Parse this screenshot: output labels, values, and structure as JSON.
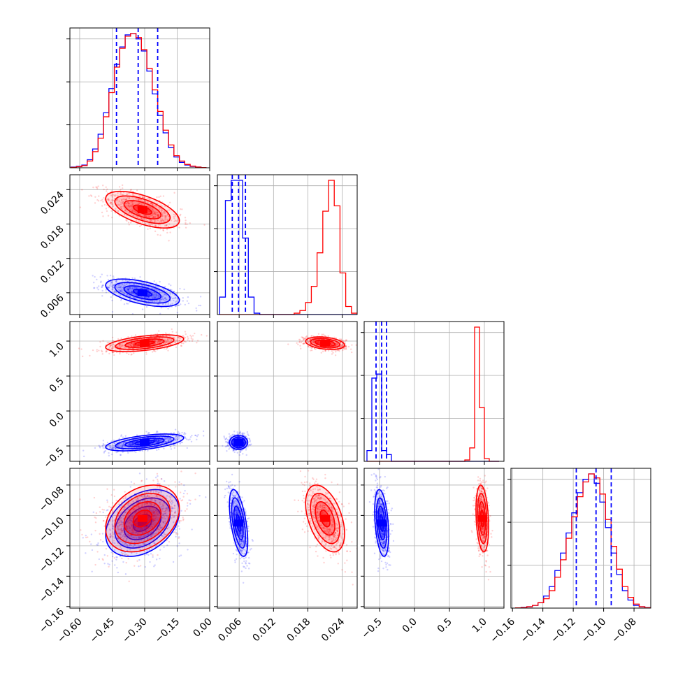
{
  "chart_data": {
    "type": "corner",
    "parameters": 4,
    "series": [
      {
        "name": "",
        "color": "#0000ff"
      },
      {
        "name": "",
        "color": "#ff0000"
      }
    ],
    "grid": true,
    "blue_quantile_lines": {
      "p0": [
        -0.43,
        -0.33,
        -0.24
      ],
      "p1": [
        0.0048,
        0.0059,
        0.0071
      ],
      "p2": [
        -0.55,
        -0.47,
        -0.4
      ],
      "p3": [
        -0.118,
        -0.105,
        -0.095
      ]
    },
    "axis_ticks": {
      "p0": [
        "−0.60",
        "−0.45",
        "−0.30",
        "−0.15",
        "0.00"
      ],
      "p1": [
        "0.006",
        "0.012",
        "0.018",
        "0.024"
      ],
      "p2": [
        "−0.5",
        "0.0",
        "0.5",
        "1.0"
      ],
      "p3": [
        "−0.16",
        "−0.14",
        "−0.12",
        "−0.10",
        "−0.08"
      ]
    },
    "ranges": {
      "p0": [
        -0.645,
        0.0
      ],
      "p1": [
        0.0022,
        0.0266
      ],
      "p2": [
        -0.72,
        1.28
      ],
      "p3": [
        -0.161,
        -0.069
      ]
    },
    "hist_p0": {
      "edges": [
        -0.64,
        -0.615,
        -0.59,
        -0.565,
        -0.54,
        -0.515,
        -0.49,
        -0.465,
        -0.44,
        -0.415,
        -0.39,
        -0.365,
        -0.34,
        -0.315,
        -0.29,
        -0.265,
        -0.24,
        -0.215,
        -0.19,
        -0.165,
        -0.14,
        -0.115,
        -0.09,
        -0.065,
        -0.04,
        -0.015
      ],
      "blue": [
        0.005,
        0.01,
        0.02,
        0.06,
        0.14,
        0.25,
        0.41,
        0.59,
        0.77,
        0.9,
        0.99,
        1.0,
        0.96,
        0.87,
        0.72,
        0.55,
        0.39,
        0.26,
        0.15,
        0.08,
        0.04,
        0.02,
        0.01,
        0.005,
        0.002
      ],
      "red": [
        0.003,
        0.008,
        0.016,
        0.05,
        0.12,
        0.22,
        0.38,
        0.56,
        0.75,
        0.89,
        0.98,
        1.0,
        0.97,
        0.88,
        0.74,
        0.58,
        0.42,
        0.28,
        0.17,
        0.09,
        0.05,
        0.025,
        0.012,
        0.005,
        0.002
      ]
    },
    "hist_p1": {
      "edges": [
        0.0026,
        0.0036,
        0.0046,
        0.0056,
        0.0066,
        0.0076,
        0.0086,
        0.0096,
        0.0106,
        0.0116,
        0.0126,
        0.0136,
        0.0146,
        0.0156,
        0.0166,
        0.0176,
        0.0186,
        0.0196,
        0.0206,
        0.0216,
        0.0226,
        0.0236,
        0.0246,
        0.0256,
        0.0266
      ],
      "blue": [
        0.13,
        0.85,
        1.0,
        1.0,
        0.57,
        0.13,
        0.01,
        0,
        0,
        0,
        0,
        0,
        0,
        0,
        0,
        0,
        0,
        0,
        0,
        0,
        0,
        0,
        0,
        0
      ],
      "red": [
        0,
        0,
        0,
        0,
        0,
        0,
        0,
        0,
        0,
        0,
        0,
        0,
        0,
        0.01,
        0.03,
        0.09,
        0.21,
        0.46,
        0.77,
        1.0,
        0.81,
        0.31,
        0.06,
        0.01
      ]
    },
    "hist_p2": {
      "edges": [
        -0.68,
        -0.61,
        -0.54,
        -0.47,
        -0.4,
        -0.33,
        -0.26,
        -0.19,
        -0.12,
        -0.05,
        0.02,
        0.09,
        0.16,
        0.23,
        0.3,
        0.37,
        0.44,
        0.51,
        0.58,
        0.65,
        0.72,
        0.79,
        0.86,
        0.93,
        1.0,
        1.07,
        1.14,
        1.21
      ],
      "blue": [
        0.08,
        0.62,
        0.65,
        0.08,
        0.05,
        0,
        0,
        0,
        0,
        0,
        0,
        0,
        0,
        0,
        0,
        0,
        0,
        0,
        0,
        0,
        0,
        0,
        0,
        0,
        0,
        0,
        0
      ],
      "red": [
        0,
        0,
        0,
        0,
        0,
        0,
        0,
        0,
        0,
        0,
        0,
        0,
        0,
        0,
        0,
        0,
        0,
        0,
        0,
        0,
        0.01,
        0.1,
        1.0,
        0.4,
        0.02,
        0,
        0
      ]
    },
    "hist_p3": {
      "edges": [
        -0.158,
        -0.1543,
        -0.1506,
        -0.1469,
        -0.1432,
        -0.1395,
        -0.1358,
        -0.1321,
        -0.1284,
        -0.1247,
        -0.121,
        -0.1173,
        -0.1136,
        -0.1099,
        -0.1062,
        -0.1025,
        -0.0988,
        -0.0951,
        -0.0914,
        -0.0877,
        -0.084,
        -0.0803,
        -0.0766,
        -0.0729,
        -0.0692
      ],
      "blue": [
        0.002,
        0.005,
        0.01,
        0.02,
        0.04,
        0.09,
        0.16,
        0.28,
        0.41,
        0.56,
        0.71,
        0.86,
        0.96,
        1.0,
        0.93,
        0.79,
        0.6,
        0.41,
        0.25,
        0.13,
        0.06,
        0.02,
        0.01,
        0.003
      ],
      "red": [
        0.002,
        0.004,
        0.01,
        0.02,
        0.04,
        0.07,
        0.13,
        0.23,
        0.36,
        0.52,
        0.68,
        0.83,
        0.94,
        1.0,
        0.97,
        0.85,
        0.66,
        0.46,
        0.29,
        0.16,
        0.08,
        0.03,
        0.01,
        0.003
      ]
    },
    "scatter_blobs": [
      {
        "row": 1,
        "col": 0,
        "color": "blue",
        "cx": -0.31,
        "cy": 0.006,
        "sx": 0.085,
        "sy": 0.0012,
        "rho": -0.55
      },
      {
        "row": 1,
        "col": 0,
        "color": "red",
        "cx": -0.31,
        "cy": 0.0205,
        "sx": 0.085,
        "sy": 0.0016,
        "rho": -0.6
      },
      {
        "row": 2,
        "col": 0,
        "color": "blue",
        "cx": -0.3,
        "cy": -0.45,
        "sx": 0.09,
        "sy": 0.06,
        "rho": 0.55
      },
      {
        "row": 2,
        "col": 0,
        "color": "red",
        "cx": -0.3,
        "cy": 0.97,
        "sx": 0.09,
        "sy": 0.06,
        "rho": 0.5
      },
      {
        "row": 2,
        "col": 1,
        "color": "blue",
        "cx": 0.0059,
        "cy": -0.45,
        "sx": 0.0008,
        "sy": 0.05,
        "rho": 0.0
      },
      {
        "row": 2,
        "col": 1,
        "color": "red",
        "cx": 0.021,
        "cy": 0.97,
        "sx": 0.0017,
        "sy": 0.045,
        "rho": -0.3
      },
      {
        "row": 3,
        "col": 0,
        "color": "blue",
        "cx": -0.31,
        "cy": -0.105,
        "sx": 0.085,
        "sy": 0.011,
        "rho": 0.35
      },
      {
        "row": 3,
        "col": 0,
        "color": "red",
        "cx": -0.31,
        "cy": -0.102,
        "sx": 0.085,
        "sy": 0.011,
        "rho": 0.3
      },
      {
        "row": 3,
        "col": 1,
        "color": "blue",
        "cx": 0.0059,
        "cy": -0.105,
        "sx": 0.0008,
        "sy": 0.011,
        "rho": -0.55
      },
      {
        "row": 3,
        "col": 1,
        "color": "red",
        "cx": 0.021,
        "cy": -0.102,
        "sx": 0.0017,
        "sy": 0.011,
        "rho": -0.45
      },
      {
        "row": 3,
        "col": 2,
        "color": "blue",
        "cx": -0.47,
        "cy": -0.105,
        "sx": 0.05,
        "sy": 0.011,
        "rho": -0.35
      },
      {
        "row": 3,
        "col": 2,
        "color": "red",
        "cx": 0.97,
        "cy": -0.102,
        "sx": 0.045,
        "sy": 0.011,
        "rho": -0.25
      }
    ]
  }
}
